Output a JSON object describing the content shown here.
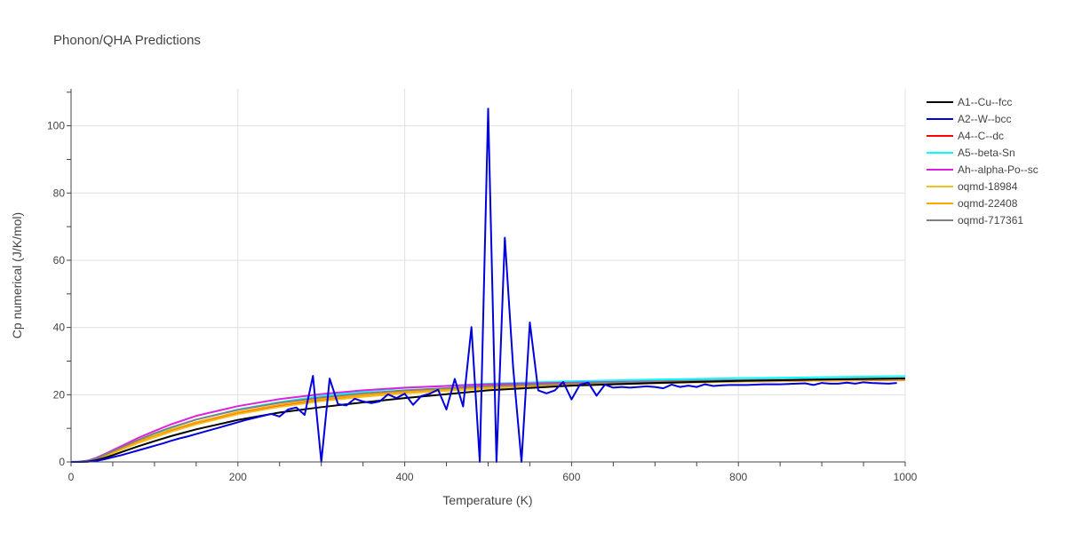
{
  "chart_data": {
    "type": "line",
    "title": "Phonon/QHA Predictions",
    "xlabel": "Temperature (K)",
    "ylabel": "Cp numerical (J/K/mol)",
    "xlim": [
      0,
      1000
    ],
    "ylim": [
      0,
      111
    ],
    "xticks": [
      0,
      200,
      400,
      600,
      800,
      1000
    ],
    "yticks": [
      0,
      20,
      40,
      60,
      80,
      100
    ],
    "grid": true,
    "legend_position": "top-right",
    "series": [
      {
        "name": "A1--Cu--fcc",
        "color": "#000000",
        "x": [
          0,
          10,
          20,
          30,
          40,
          50,
          60,
          80,
          100,
          120,
          150,
          200,
          250,
          300,
          350,
          400,
          500,
          600,
          700,
          800,
          900,
          1000
        ],
        "y": [
          0,
          0.02,
          0.1,
          0.5,
          1.2,
          2.0,
          2.9,
          4.6,
          6.2,
          7.7,
          9.7,
          12.5,
          14.7,
          16.3,
          17.7,
          19.0,
          21.3,
          22.7,
          23.5,
          24.1,
          24.5,
          24.8
        ]
      },
      {
        "name": "A2--W--bcc",
        "color": "#0000dd",
        "x": [
          0,
          10,
          20,
          30,
          40,
          50,
          60,
          70,
          80,
          90,
          100,
          110,
          120,
          130,
          140,
          150,
          160,
          170,
          180,
          190,
          200,
          210,
          220,
          230,
          240,
          250,
          260,
          270,
          280,
          290,
          300,
          310,
          320,
          330,
          340,
          350,
          360,
          370,
          380,
          390,
          400,
          410,
          420,
          430,
          440,
          450,
          460,
          470,
          480,
          490,
          500,
          510,
          520,
          530,
          540,
          550,
          560,
          570,
          580,
          590,
          600,
          610,
          620,
          630,
          640,
          650,
          660,
          670,
          680,
          690,
          700,
          710,
          720,
          730,
          740,
          750,
          760,
          770,
          780,
          790,
          800,
          810,
          820,
          830,
          840,
          850,
          860,
          870,
          880,
          890,
          900,
          910,
          920,
          930,
          940,
          950,
          960,
          970,
          980,
          990
        ],
        "y": [
          0,
          0.01,
          0.05,
          0.3,
          0.8,
          1.4,
          2.0,
          2.7,
          3.4,
          4.1,
          4.8,
          5.5,
          6.3,
          7.0,
          7.6,
          8.3,
          9.0,
          9.7,
          10.4,
          11.1,
          11.8,
          12.5,
          13.1,
          13.7,
          14.3,
          13.5,
          15.6,
          16.2,
          14.0,
          25.6,
          0,
          24.8,
          17.2,
          16.8,
          18.8,
          18.0,
          17.5,
          18.0,
          20.1,
          19.0,
          20.3,
          17.0,
          19.6,
          20.3,
          21.5,
          15.6,
          24.7,
          16.5,
          40.1,
          0,
          105.1,
          0,
          66.7,
          28.0,
          0,
          41.5,
          21.3,
          20.4,
          21.3,
          23.8,
          18.6,
          23.0,
          23.6,
          19.7,
          23.0,
          22.1,
          22.3,
          22.1,
          22.3,
          22.5,
          22.3,
          21.9,
          23.0,
          22.3,
          22.7,
          22.3,
          23.1,
          22.6,
          22.8,
          22.9,
          22.9,
          22.9,
          23.0,
          23.1,
          23.1,
          23.1,
          23.2,
          23.3,
          23.4,
          22.9,
          23.5,
          23.3,
          23.3,
          23.6,
          23.3,
          23.7,
          23.5,
          23.4,
          23.3,
          23.5
        ]
      },
      {
        "name": "A4--C--dc",
        "color": "#ff0000",
        "x": [
          0,
          10,
          20,
          30,
          40,
          50,
          60,
          80,
          100,
          120,
          150,
          200,
          250,
          300,
          350,
          400,
          500,
          600,
          700,
          800,
          900,
          1000
        ],
        "y": [
          0,
          0.04,
          0.25,
          0.9,
          1.8,
          2.8,
          3.8,
          5.8,
          7.6,
          9.3,
          11.5,
          14.5,
          16.7,
          18.4,
          19.7,
          20.7,
          22.1,
          22.9,
          23.5,
          23.9,
          24.2,
          24.4
        ]
      },
      {
        "name": "A5--beta-Sn",
        "color": "#00ffff",
        "x": [
          0,
          10,
          20,
          30,
          40,
          50,
          60,
          80,
          100,
          120,
          150,
          200,
          250,
          300,
          350,
          400,
          500,
          600,
          700,
          800,
          900,
          1000
        ],
        "y": [
          0,
          0.05,
          0.3,
          1.0,
          2.0,
          3.1,
          4.2,
          6.4,
          8.4,
          10.2,
          12.6,
          15.6,
          17.8,
          19.6,
          20.9,
          22.0,
          23.3,
          24.0,
          24.5,
          24.9,
          25.2,
          25.5
        ]
      },
      {
        "name": "Ah--alpha-Po--sc",
        "color": "#dd22dd",
        "x": [
          0,
          10,
          20,
          30,
          40,
          50,
          60,
          80,
          100,
          120,
          150,
          200,
          250,
          300,
          350,
          400,
          500,
          600,
          700,
          800,
          900,
          1000
        ],
        "y": [
          0,
          0.06,
          0.4,
          1.2,
          2.3,
          3.5,
          4.7,
          7.1,
          9.2,
          11.2,
          13.7,
          16.6,
          18.7,
          20.2,
          21.3,
          22.1,
          23.1,
          23.6,
          24.0,
          24.3,
          24.5,
          24.7
        ]
      },
      {
        "name": "oqmd-18984",
        "color": "#f0c020",
        "x": [
          0,
          10,
          20,
          30,
          40,
          50,
          60,
          80,
          100,
          120,
          150,
          200,
          250,
          300,
          350,
          400,
          500,
          600,
          700,
          800,
          900,
          1000
        ],
        "y": [
          0,
          0.03,
          0.2,
          0.8,
          1.7,
          2.6,
          3.6,
          5.6,
          7.3,
          9.0,
          11.2,
          14.2,
          16.4,
          18.1,
          19.4,
          20.4,
          21.9,
          22.8,
          23.4,
          23.9,
          24.2,
          24.5
        ]
      },
      {
        "name": "oqmd-22408",
        "color": "#ffa500",
        "x": [
          0,
          10,
          20,
          30,
          40,
          50,
          60,
          80,
          100,
          120,
          150,
          200,
          250,
          300,
          350,
          400,
          500,
          600,
          700,
          800,
          900,
          1000
        ],
        "y": [
          0,
          0.04,
          0.25,
          0.9,
          1.9,
          2.9,
          3.9,
          6.0,
          7.8,
          9.6,
          11.8,
          14.8,
          17.0,
          18.7,
          19.9,
          20.9,
          22.3,
          23.1,
          23.7,
          24.1,
          24.4,
          24.7
        ]
      },
      {
        "name": "oqmd-717361",
        "color": "#808080",
        "x": [
          0,
          10,
          20,
          30,
          40,
          50,
          60,
          80,
          100,
          120,
          150,
          200,
          250,
          300,
          350,
          400,
          500,
          600,
          700,
          800,
          900,
          1000
        ],
        "y": [
          0,
          0.05,
          0.3,
          1.0,
          2.1,
          3.2,
          4.3,
          6.5,
          8.5,
          10.3,
          12.6,
          15.5,
          17.6,
          19.2,
          20.4,
          21.3,
          22.6,
          23.4,
          23.9,
          24.3,
          24.6,
          24.9
        ]
      }
    ]
  }
}
